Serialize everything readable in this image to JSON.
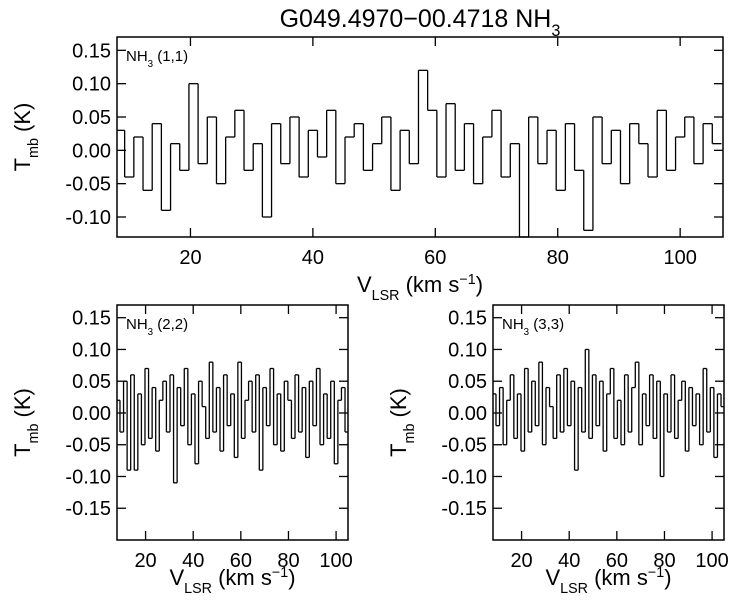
{
  "chart_data": [
    {
      "type": "line",
      "drawstyle": "steps-mid",
      "color": "#000000",
      "title": [
        {
          "text": "G049.4970−00.4718 NH"
        },
        {
          "text": "3",
          "shift": "sub"
        }
      ],
      "label": [
        {
          "text": "NH"
        },
        {
          "text": "3",
          "shift": "sub"
        },
        {
          "text": " (1,1)"
        }
      ],
      "xlabel": [
        {
          "text": "V"
        },
        {
          "text": "LSR",
          "shift": "sub"
        },
        {
          "text": " (km s"
        },
        {
          "text": "−1",
          "shift": "super"
        },
        {
          "text": ")"
        }
      ],
      "ylabel": [
        {
          "text": "T"
        },
        {
          "text": "mb",
          "shift": "sub"
        },
        {
          "text": " (K)"
        }
      ],
      "xlim": [
        8,
        107
      ],
      "xticks": [
        20,
        40,
        60,
        80,
        100
      ],
      "ylim": [
        -0.13,
        0.17
      ],
      "yticks": [
        {
          "value": 0.15,
          "label": "0.15"
        },
        {
          "value": 0.1,
          "label": "0.10"
        },
        {
          "value": 0.05,
          "label": "0.05"
        },
        {
          "value": 0,
          "label": "0.00"
        },
        {
          "value": -0.05,
          "label": "-0.05"
        },
        {
          "value": -0.1,
          "label": "-0.10"
        }
      ],
      "x": [
        8.5,
        10,
        11.5,
        13,
        14.5,
        16,
        17.5,
        19,
        20.5,
        22,
        23.5,
        25,
        26.5,
        28,
        29.5,
        31,
        32.5,
        34,
        35.5,
        37,
        38.5,
        40,
        41.5,
        43,
        44.5,
        46,
        47.5,
        49,
        50.5,
        52,
        53.5,
        55,
        56.5,
        58,
        59.5,
        61,
        62.5,
        64,
        65.5,
        67,
        68.5,
        70,
        71.5,
        73,
        74.5,
        76,
        77.5,
        79,
        80.5,
        82,
        83.5,
        85,
        86.5,
        88,
        89.5,
        91,
        92.5,
        94,
        95.5,
        97,
        98.5,
        100,
        101.5,
        103,
        104.5,
        106
      ],
      "values": [
        0.03,
        -0.04,
        0.02,
        -0.06,
        0.04,
        -0.09,
        0.01,
        -0.03,
        0.1,
        -0.02,
        0.05,
        -0.05,
        0.02,
        0.06,
        -0.03,
        0.01,
        -0.1,
        0.04,
        -0.02,
        0.05,
        -0.04,
        0.03,
        -0.01,
        0.06,
        -0.05,
        0.02,
        0.04,
        -0.03,
        0.01,
        0.05,
        -0.06,
        0.03,
        -0.02,
        0.12,
        0.06,
        -0.04,
        0.07,
        -0.03,
        0.04,
        -0.05,
        0.02,
        0.06,
        -0.04,
        0.01,
        -0.13,
        0.05,
        -0.02,
        0.03,
        -0.06,
        0.04,
        -0.03,
        -0.12,
        0.05,
        -0.02,
        0.03,
        -0.05,
        0.04,
        0.01,
        -0.04,
        0.06,
        -0.03,
        0.02,
        0.05,
        -0.02,
        0.04,
        0.01
      ]
    },
    {
      "type": "line",
      "drawstyle": "steps-mid",
      "color": "#000000",
      "label": [
        {
          "text": "NH"
        },
        {
          "text": "3",
          "shift": "sub"
        },
        {
          "text": " (2,2)"
        }
      ],
      "xlabel": [
        {
          "text": "V"
        },
        {
          "text": "LSR",
          "shift": "sub"
        },
        {
          "text": " (km s"
        },
        {
          "text": "−1",
          "shift": "super"
        },
        {
          "text": ")"
        }
      ],
      "ylabel": [
        {
          "text": "T"
        },
        {
          "text": "mb",
          "shift": "sub"
        },
        {
          "text": " (K)"
        }
      ],
      "xlim": [
        8,
        105
      ],
      "xticks": [
        20,
        40,
        60,
        80,
        100
      ],
      "ylim": [
        -0.2,
        0.17
      ],
      "yticks": [
        {
          "value": 0.15,
          "label": "0.15"
        },
        {
          "value": 0.1,
          "label": "0.10"
        },
        {
          "value": 0.05,
          "label": "0.05"
        },
        {
          "value": 0,
          "label": "0.00"
        },
        {
          "value": -0.05,
          "label": "-0.05"
        },
        {
          "value": -0.1,
          "label": "-0.10"
        },
        {
          "value": -0.15,
          "label": "-0.15"
        }
      ],
      "x": [
        8.5,
        10,
        11.5,
        13,
        14.5,
        16,
        17.5,
        19,
        20.5,
        22,
        23.5,
        25,
        26.5,
        28,
        29.5,
        31,
        32.5,
        34,
        35.5,
        37,
        38.5,
        40,
        41.5,
        43,
        44.5,
        46,
        47.5,
        49,
        50.5,
        52,
        53.5,
        55,
        56.5,
        58,
        59.5,
        61,
        62.5,
        64,
        65.5,
        67,
        68.5,
        70,
        71.5,
        73,
        74.5,
        76,
        77.5,
        79,
        80.5,
        82,
        83.5,
        85,
        86.5,
        88,
        89.5,
        91,
        92.5,
        94,
        95.5,
        97,
        98.5,
        100,
        101.5,
        103,
        104.5
      ],
      "values": [
        0.02,
        -0.03,
        0.05,
        -0.09,
        0.06,
        -0.09,
        0.03,
        -0.05,
        0.07,
        -0.04,
        0.04,
        -0.06,
        0.02,
        0.05,
        -0.03,
        0.06,
        -0.11,
        0.04,
        -0.02,
        0.07,
        -0.05,
        0.03,
        -0.08,
        0.05,
        0.01,
        -0.04,
        0.08,
        -0.03,
        0.04,
        -0.06,
        0.06,
        -0.02,
        0.03,
        -0.07,
        0.08,
        -0.04,
        0.02,
        0.05,
        -0.03,
        0.06,
        -0.09,
        0.04,
        -0.02,
        0.07,
        -0.05,
        0.03,
        -0.06,
        0.05,
        0.02,
        -0.04,
        0.06,
        -0.03,
        0.04,
        -0.07,
        0.05,
        -0.02,
        0.07,
        -0.05,
        0.03,
        -0.04,
        0.05,
        -0.08,
        0.02,
        0.04,
        -0.03
      ]
    },
    {
      "type": "line",
      "drawstyle": "steps-mid",
      "color": "#000000",
      "label": [
        {
          "text": "NH"
        },
        {
          "text": "3",
          "shift": "sub"
        },
        {
          "text": " (3,3)"
        }
      ],
      "xlabel": [
        {
          "text": "V"
        },
        {
          "text": "LSR",
          "shift": "sub"
        },
        {
          "text": " (km s"
        },
        {
          "text": "−1",
          "shift": "super"
        },
        {
          "text": ")"
        }
      ],
      "ylabel": [
        {
          "text": "T"
        },
        {
          "text": "mb",
          "shift": "sub"
        },
        {
          "text": " (K)"
        }
      ],
      "xlim": [
        8,
        105
      ],
      "xticks": [
        20,
        40,
        60,
        80,
        100
      ],
      "ylim": [
        -0.2,
        0.17
      ],
      "yticks": [
        {
          "value": 0.15,
          "label": "0.15"
        },
        {
          "value": 0.1,
          "label": "0.10"
        },
        {
          "value": 0.05,
          "label": "0.05"
        },
        {
          "value": 0,
          "label": "0.00"
        },
        {
          "value": -0.05,
          "label": "-0.05"
        },
        {
          "value": -0.1,
          "label": "-0.10"
        },
        {
          "value": -0.15,
          "label": "-0.15"
        }
      ],
      "x": [
        8.5,
        10,
        11.5,
        13,
        14.5,
        16,
        17.5,
        19,
        20.5,
        22,
        23.5,
        25,
        26.5,
        28,
        29.5,
        31,
        32.5,
        34,
        35.5,
        37,
        38.5,
        40,
        41.5,
        43,
        44.5,
        46,
        47.5,
        49,
        50.5,
        52,
        53.5,
        55,
        56.5,
        58,
        59.5,
        61,
        62.5,
        64,
        65.5,
        67,
        68.5,
        70,
        71.5,
        73,
        74.5,
        76,
        77.5,
        79,
        80.5,
        82,
        83.5,
        85,
        86.5,
        88,
        89.5,
        91,
        92.5,
        94,
        95.5,
        97,
        98.5,
        100,
        101.5,
        103,
        104.5
      ],
      "values": [
        0.03,
        -0.02,
        0.04,
        -0.05,
        0.02,
        0.06,
        -0.04,
        0.03,
        -0.06,
        0.07,
        -0.03,
        0.05,
        -0.02,
        0.08,
        -0.05,
        0.04,
        0.01,
        -0.04,
        0.06,
        -0.03,
        0.07,
        -0.02,
        0.05,
        -0.09,
        0.04,
        -0.03,
        0.1,
        -0.04,
        0.06,
        -0.02,
        0.05,
        -0.06,
        0.03,
        0.07,
        -0.04,
        0.02,
        -0.05,
        0.06,
        -0.03,
        0.04,
        0.08,
        -0.05,
        0.03,
        -0.02,
        0.06,
        -0.04,
        0.05,
        -0.1,
        0.03,
        -0.03,
        0.06,
        -0.04,
        0.02,
        0.05,
        -0.06,
        0.04,
        -0.02,
        0.03,
        -0.05,
        0.07,
        -0.03,
        0.04,
        -0.07,
        0.03,
        0.01
      ]
    }
  ]
}
